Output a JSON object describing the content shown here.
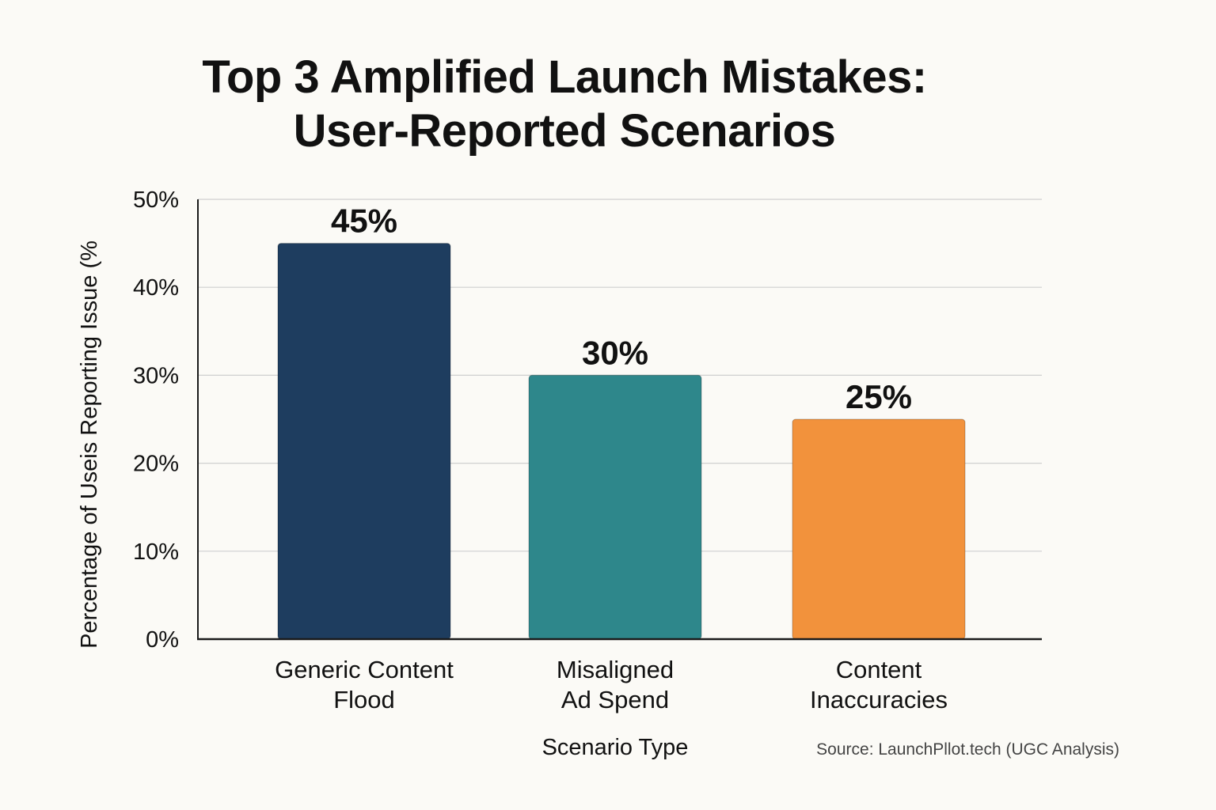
{
  "chart_data": {
    "type": "bar",
    "title": [
      "Top 3 Amplified Launch Mistakes:",
      "User-Reported Scenarios"
    ],
    "categories": [
      [
        "Generic Content",
        "Flood"
      ],
      [
        "Misaligned",
        "Ad Spend"
      ],
      [
        "Content",
        "Inaccuracies"
      ]
    ],
    "values": [
      45,
      30,
      25
    ],
    "data_labels": [
      "45%",
      "30%",
      "25%"
    ],
    "colors": [
      "#1e3d5f",
      "#2e878b",
      "#f2923c"
    ],
    "ylim": [
      0,
      50
    ],
    "yticks": [
      0,
      10,
      20,
      30,
      40,
      50
    ],
    "ytick_labels": [
      "0%",
      "10%",
      "20%",
      "30%",
      "40%",
      "50%"
    ],
    "xlabel": "Scenario Type",
    "ylabel": "Percentage of Useis Reporting Issue (%",
    "grid": true,
    "legend": "none"
  },
  "source": "Source: LaunchPllot.tech (UGC Analysis)"
}
